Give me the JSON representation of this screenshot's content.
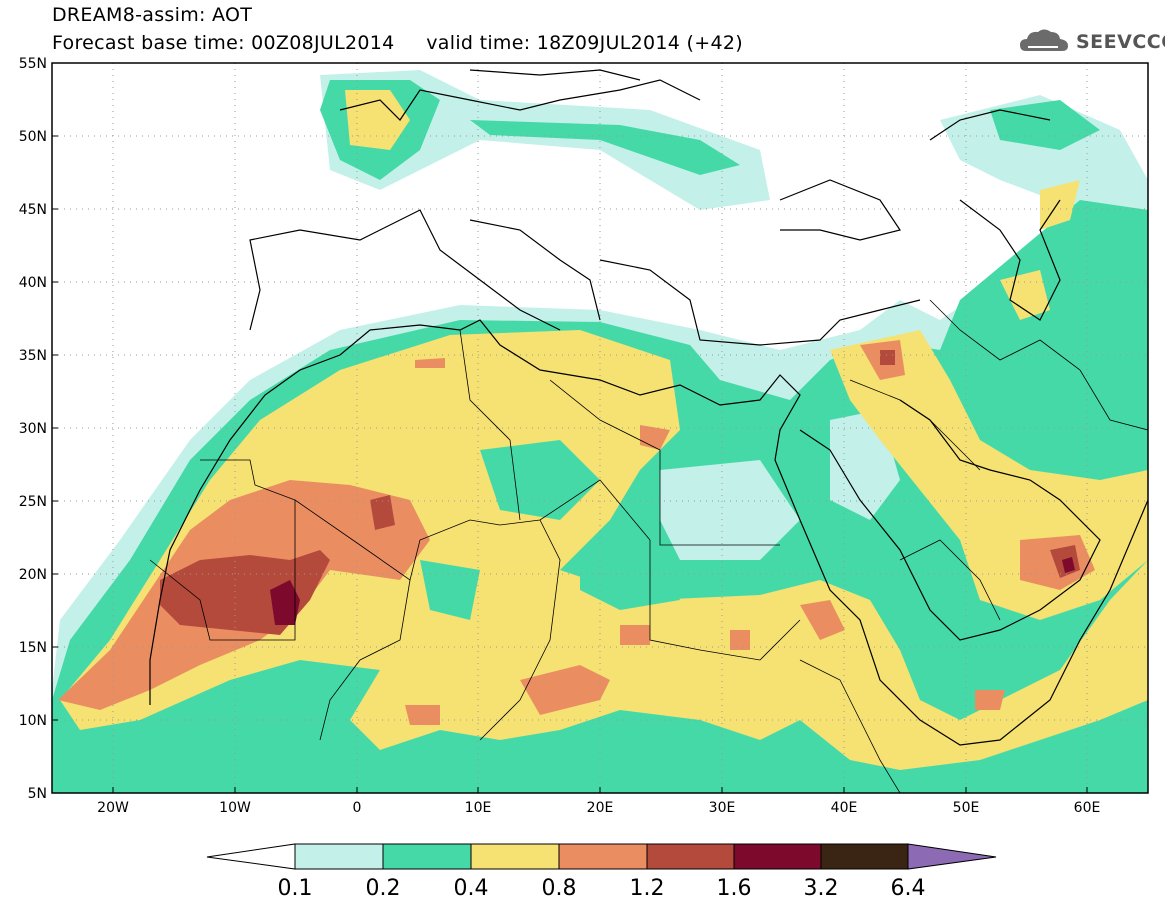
{
  "header": {
    "title_line1": "DREAM8-assim: AOT",
    "title_line2": "Forecast base time: 00Z08JUL2014     valid time: 18Z09JUL2014 (+42)",
    "logo_text": "SEEVCCC"
  },
  "map": {
    "lon_range": [
      -25,
      65
    ],
    "lat_range": [
      5,
      55
    ],
    "lat_ticks": [
      "55N",
      "50N",
      "45N",
      "40N",
      "35N",
      "30N",
      "25N",
      "20N",
      "15N",
      "10N",
      "5N"
    ],
    "lon_ticks": [
      "20W",
      "10W",
      "0",
      "10E",
      "20E",
      "30E",
      "40E",
      "50E",
      "60E"
    ],
    "grid": "dotted"
  },
  "colorbar": {
    "labels": [
      "0.1",
      "0.2",
      "0.4",
      "0.8",
      "1.2",
      "1.6",
      "3.2",
      "6.4"
    ],
    "colors": [
      "#ffffff",
      "#c4f0ea",
      "#46d9a8",
      "#f6e173",
      "#ea8e62",
      "#b44a3c",
      "#7d0a2c",
      "#3a2414",
      "#8c6ab4"
    ]
  }
}
